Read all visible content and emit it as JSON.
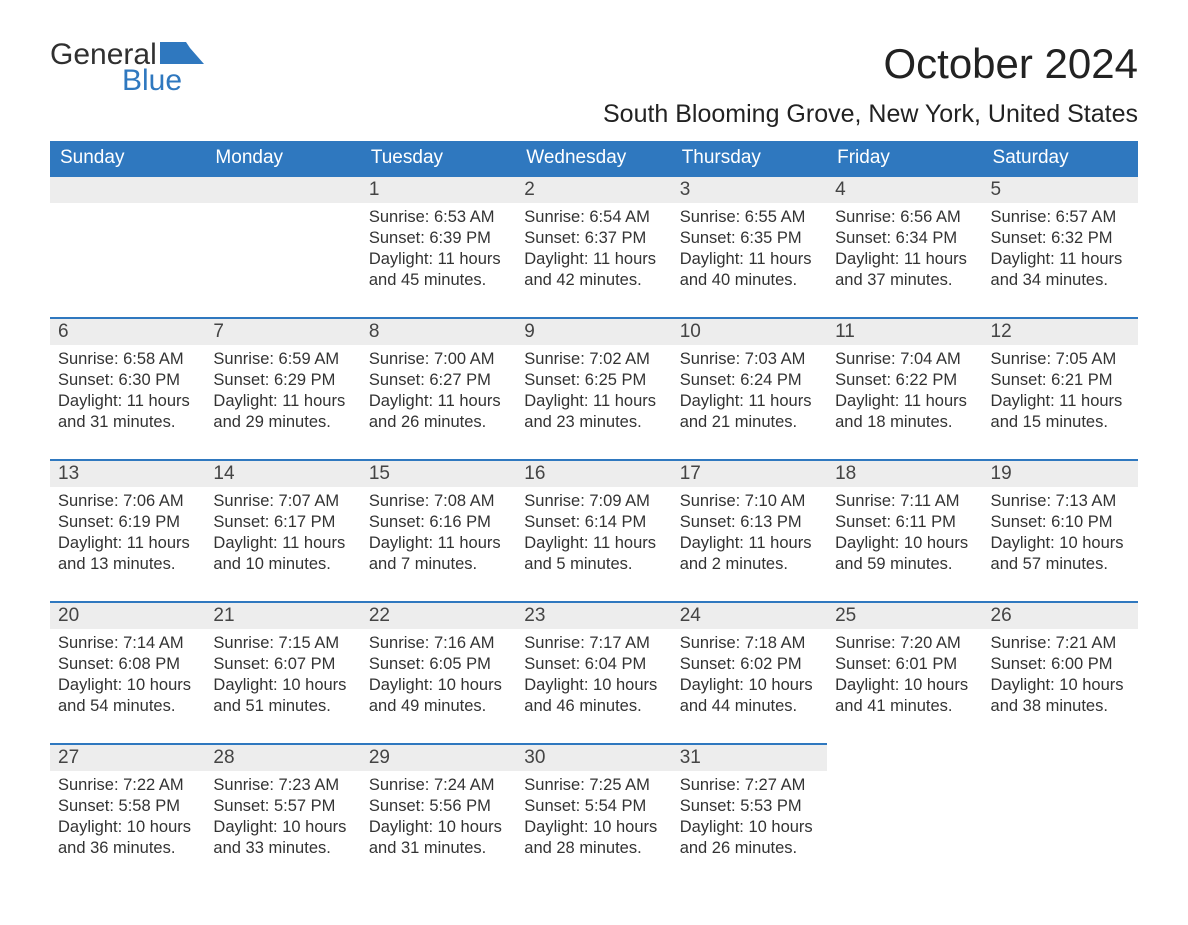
{
  "logo": {
    "word1": "General",
    "word2": "Blue"
  },
  "colors": {
    "accent": "#2f78bf",
    "header_bg": "#2f78bf",
    "header_text": "#ffffff",
    "daynum_bg": "#ededed",
    "body_text": "#303030",
    "page_bg": "#ffffff"
  },
  "typography": {
    "body_fontsize": 16.5,
    "header_fontsize": 19,
    "title_fontsize": 42,
    "location_fontsize": 25
  },
  "title": "October 2024",
  "location": "South Blooming Grove, New York, United States",
  "weekdays": [
    "Sunday",
    "Monday",
    "Tuesday",
    "Wednesday",
    "Thursday",
    "Friday",
    "Saturday"
  ],
  "weeks": [
    [
      null,
      null,
      {
        "n": "1",
        "sr": "Sunrise: 6:53 AM",
        "ss": "Sunset: 6:39 PM",
        "d1": "Daylight: 11 hours",
        "d2": "and 45 minutes."
      },
      {
        "n": "2",
        "sr": "Sunrise: 6:54 AM",
        "ss": "Sunset: 6:37 PM",
        "d1": "Daylight: 11 hours",
        "d2": "and 42 minutes."
      },
      {
        "n": "3",
        "sr": "Sunrise: 6:55 AM",
        "ss": "Sunset: 6:35 PM",
        "d1": "Daylight: 11 hours",
        "d2": "and 40 minutes."
      },
      {
        "n": "4",
        "sr": "Sunrise: 6:56 AM",
        "ss": "Sunset: 6:34 PM",
        "d1": "Daylight: 11 hours",
        "d2": "and 37 minutes."
      },
      {
        "n": "5",
        "sr": "Sunrise: 6:57 AM",
        "ss": "Sunset: 6:32 PM",
        "d1": "Daylight: 11 hours",
        "d2": "and 34 minutes."
      }
    ],
    [
      {
        "n": "6",
        "sr": "Sunrise: 6:58 AM",
        "ss": "Sunset: 6:30 PM",
        "d1": "Daylight: 11 hours",
        "d2": "and 31 minutes."
      },
      {
        "n": "7",
        "sr": "Sunrise: 6:59 AM",
        "ss": "Sunset: 6:29 PM",
        "d1": "Daylight: 11 hours",
        "d2": "and 29 minutes."
      },
      {
        "n": "8",
        "sr": "Sunrise: 7:00 AM",
        "ss": "Sunset: 6:27 PM",
        "d1": "Daylight: 11 hours",
        "d2": "and 26 minutes."
      },
      {
        "n": "9",
        "sr": "Sunrise: 7:02 AM",
        "ss": "Sunset: 6:25 PM",
        "d1": "Daylight: 11 hours",
        "d2": "and 23 minutes."
      },
      {
        "n": "10",
        "sr": "Sunrise: 7:03 AM",
        "ss": "Sunset: 6:24 PM",
        "d1": "Daylight: 11 hours",
        "d2": "and 21 minutes."
      },
      {
        "n": "11",
        "sr": "Sunrise: 7:04 AM",
        "ss": "Sunset: 6:22 PM",
        "d1": "Daylight: 11 hours",
        "d2": "and 18 minutes."
      },
      {
        "n": "12",
        "sr": "Sunrise: 7:05 AM",
        "ss": "Sunset: 6:21 PM",
        "d1": "Daylight: 11 hours",
        "d2": "and 15 minutes."
      }
    ],
    [
      {
        "n": "13",
        "sr": "Sunrise: 7:06 AM",
        "ss": "Sunset: 6:19 PM",
        "d1": "Daylight: 11 hours",
        "d2": "and 13 minutes."
      },
      {
        "n": "14",
        "sr": "Sunrise: 7:07 AM",
        "ss": "Sunset: 6:17 PM",
        "d1": "Daylight: 11 hours",
        "d2": "and 10 minutes."
      },
      {
        "n": "15",
        "sr": "Sunrise: 7:08 AM",
        "ss": "Sunset: 6:16 PM",
        "d1": "Daylight: 11 hours",
        "d2": "and 7 minutes."
      },
      {
        "n": "16",
        "sr": "Sunrise: 7:09 AM",
        "ss": "Sunset: 6:14 PM",
        "d1": "Daylight: 11 hours",
        "d2": "and 5 minutes."
      },
      {
        "n": "17",
        "sr": "Sunrise: 7:10 AM",
        "ss": "Sunset: 6:13 PM",
        "d1": "Daylight: 11 hours",
        "d2": "and 2 minutes."
      },
      {
        "n": "18",
        "sr": "Sunrise: 7:11 AM",
        "ss": "Sunset: 6:11 PM",
        "d1": "Daylight: 10 hours",
        "d2": "and 59 minutes."
      },
      {
        "n": "19",
        "sr": "Sunrise: 7:13 AM",
        "ss": "Sunset: 6:10 PM",
        "d1": "Daylight: 10 hours",
        "d2": "and 57 minutes."
      }
    ],
    [
      {
        "n": "20",
        "sr": "Sunrise: 7:14 AM",
        "ss": "Sunset: 6:08 PM",
        "d1": "Daylight: 10 hours",
        "d2": "and 54 minutes."
      },
      {
        "n": "21",
        "sr": "Sunrise: 7:15 AM",
        "ss": "Sunset: 6:07 PM",
        "d1": "Daylight: 10 hours",
        "d2": "and 51 minutes."
      },
      {
        "n": "22",
        "sr": "Sunrise: 7:16 AM",
        "ss": "Sunset: 6:05 PM",
        "d1": "Daylight: 10 hours",
        "d2": "and 49 minutes."
      },
      {
        "n": "23",
        "sr": "Sunrise: 7:17 AM",
        "ss": "Sunset: 6:04 PM",
        "d1": "Daylight: 10 hours",
        "d2": "and 46 minutes."
      },
      {
        "n": "24",
        "sr": "Sunrise: 7:18 AM",
        "ss": "Sunset: 6:02 PM",
        "d1": "Daylight: 10 hours",
        "d2": "and 44 minutes."
      },
      {
        "n": "25",
        "sr": "Sunrise: 7:20 AM",
        "ss": "Sunset: 6:01 PM",
        "d1": "Daylight: 10 hours",
        "d2": "and 41 minutes."
      },
      {
        "n": "26",
        "sr": "Sunrise: 7:21 AM",
        "ss": "Sunset: 6:00 PM",
        "d1": "Daylight: 10 hours",
        "d2": "and 38 minutes."
      }
    ],
    [
      {
        "n": "27",
        "sr": "Sunrise: 7:22 AM",
        "ss": "Sunset: 5:58 PM",
        "d1": "Daylight: 10 hours",
        "d2": "and 36 minutes."
      },
      {
        "n": "28",
        "sr": "Sunrise: 7:23 AM",
        "ss": "Sunset: 5:57 PM",
        "d1": "Daylight: 10 hours",
        "d2": "and 33 minutes."
      },
      {
        "n": "29",
        "sr": "Sunrise: 7:24 AM",
        "ss": "Sunset: 5:56 PM",
        "d1": "Daylight: 10 hours",
        "d2": "and 31 minutes."
      },
      {
        "n": "30",
        "sr": "Sunrise: 7:25 AM",
        "ss": "Sunset: 5:54 PM",
        "d1": "Daylight: 10 hours",
        "d2": "and 28 minutes."
      },
      {
        "n": "31",
        "sr": "Sunrise: 7:27 AM",
        "ss": "Sunset: 5:53 PM",
        "d1": "Daylight: 10 hours",
        "d2": "and 26 minutes."
      },
      null,
      null
    ]
  ]
}
